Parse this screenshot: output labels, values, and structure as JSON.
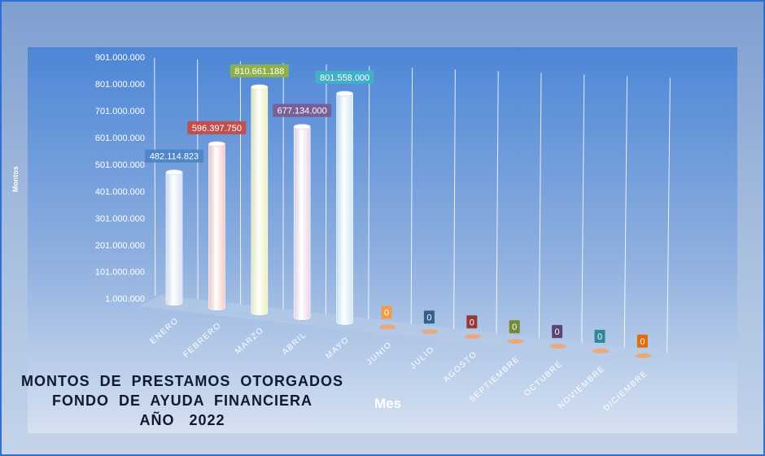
{
  "title_lines": [
    "MONTOS  DE  PRESTAMOS  OTORGADOS",
    "FONDO  DE  AYUDA  FINANCIERA",
    "AÑO   2022"
  ],
  "chart_data": {
    "type": "bar",
    "xlabel": "Mes",
    "ylabel": "Montos",
    "categories": [
      "ENERO",
      "FEBRERO",
      "MARZO",
      "ABRIL",
      "MAYO",
      "JUNIO",
      "JULIO",
      "AGOSTO",
      "SEPTIEMBRE",
      "OCTUBRE",
      "NOVIEMBRE",
      "DICIEMBRE"
    ],
    "values": [
      482114823,
      596397750,
      810661188,
      677134000,
      801558000,
      0,
      0,
      0,
      0,
      0,
      0,
      0
    ],
    "data_labels": [
      "482.114.823",
      "596.397.750",
      "810.661.188",
      "677.134.000",
      "801.558.000",
      "0",
      "0",
      "0",
      "0",
      "0",
      "0",
      "0"
    ],
    "y_ticks": [
      "1.000.000",
      "101.000.000",
      "201.000.000",
      "301.000.000",
      "401.000.000",
      "501.000.000",
      "601.000.000",
      "701.000.000",
      "801.000.000",
      "901.000.000"
    ],
    "ylim": [
      1000000,
      901000000
    ],
    "bar_colors": [
      "#d6e0f2",
      "#f6cbc2",
      "#eef0b8",
      "#e7d6e9",
      "#cfe7f3",
      "#f2a261",
      "#f2a261",
      "#f2a261",
      "#f2a261",
      "#f2a261",
      "#f2a261",
      "#f2a261"
    ],
    "label_colors": [
      "#4f86c6",
      "#c0504d",
      "#8fb04d",
      "#7a5e98",
      "#41b0c6",
      "#f29a4a",
      "#34608f",
      "#953936",
      "#738a39",
      "#5c4576",
      "#31869b",
      "#e46c0a"
    ]
  }
}
